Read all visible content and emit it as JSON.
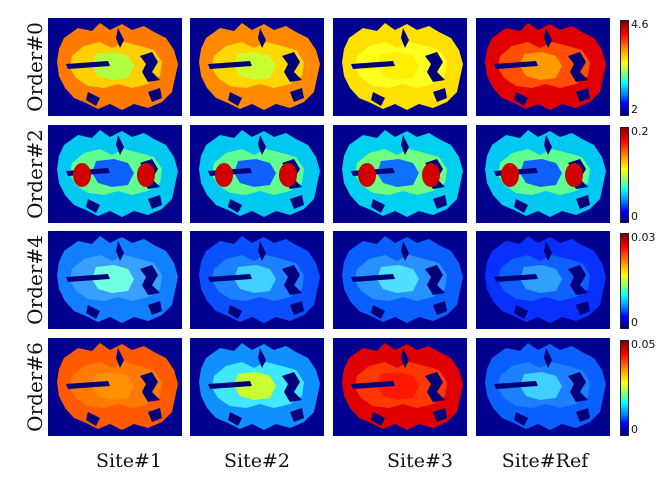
{
  "rows": [
    {
      "label": "Order#0",
      "colorbar": {
        "max": "4.6",
        "min": "2"
      },
      "panels": [
        {
          "outer": "#ff7a00",
          "inner": "#ffd000",
          "core": "#b0ff40",
          "dark": "#00007a"
        },
        {
          "outer": "#ff8a00",
          "inner": "#ffd800",
          "core": "#c8ff30",
          "dark": "#00007a"
        },
        {
          "outer": "#ffe000",
          "inner": "#ffff20",
          "core": "#fff000",
          "dark": "#00007a"
        },
        {
          "outer": "#e00000",
          "inner": "#ff5000",
          "core": "#ff9a00",
          "dark": "#00007a"
        }
      ]
    },
    {
      "label": "Order#2",
      "colorbar": {
        "max": "0.2",
        "min": "0"
      },
      "panels": [
        {
          "outer": "#00c8f0",
          "inner": "#60ff90",
          "core": "#1060ff",
          "dark": "#00007a",
          "spot": "#d00000"
        },
        {
          "outer": "#00c8f0",
          "inner": "#60ff90",
          "core": "#1060ff",
          "dark": "#00007a",
          "spot": "#d00000"
        },
        {
          "outer": "#00d0f0",
          "inner": "#70ff80",
          "core": "#1070ff",
          "dark": "#00007a",
          "spot": "#d00000"
        },
        {
          "outer": "#00c8f0",
          "inner": "#60ff90",
          "core": "#1060ff",
          "dark": "#00007a",
          "spot": "#d00000"
        }
      ]
    },
    {
      "label": "Order#4",
      "colorbar": {
        "max": "0.03",
        "min": "0"
      },
      "panels": [
        {
          "outer": "#1080ff",
          "inner": "#3aa0ff",
          "core": "#70ffe0",
          "dark": "#00007a"
        },
        {
          "outer": "#0a50ff",
          "inner": "#1c80ff",
          "core": "#40d0ff",
          "dark": "#00007a"
        },
        {
          "outer": "#0a60ff",
          "inner": "#2890ff",
          "core": "#50e0ff",
          "dark": "#00007a"
        },
        {
          "outer": "#0830ff",
          "inner": "#1060ff",
          "core": "#30a0ff",
          "dark": "#00007a"
        }
      ]
    },
    {
      "label": "Order#6",
      "colorbar": {
        "max": "0.05",
        "min": "0"
      },
      "panels": [
        {
          "outer": "#ff5a00",
          "inner": "#ff7a00",
          "core": "#ff9000",
          "dark": "#00007a"
        },
        {
          "outer": "#1090ff",
          "inner": "#40e8ff",
          "core": "#c8ff30",
          "dark": "#00007a"
        },
        {
          "outer": "#e00000",
          "inner": "#ff3800",
          "core": "#ff1800",
          "dark": "#00007a"
        },
        {
          "outer": "#0a60ff",
          "inner": "#1c80ff",
          "core": "#40d0ff",
          "dark": "#00007a"
        }
      ]
    }
  ],
  "columns": [
    "Site#1",
    "Site#2",
    "Site#3",
    "Site#Ref"
  ]
}
